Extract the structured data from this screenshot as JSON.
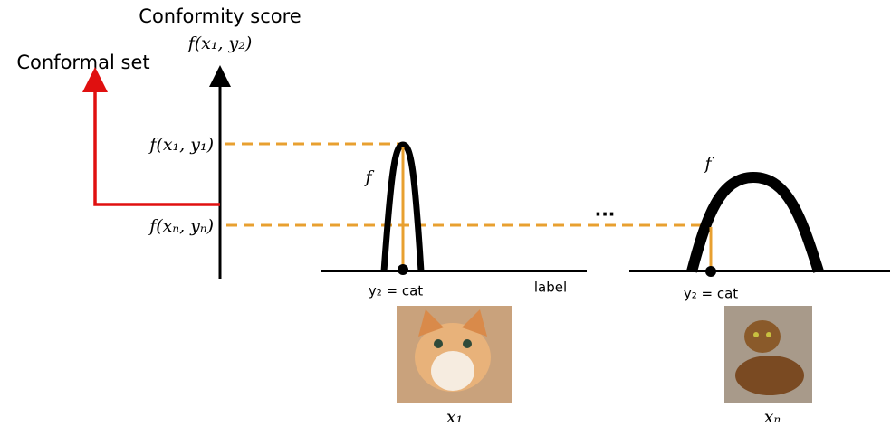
{
  "axis": {
    "title": "Conformity score",
    "top_label": "f(x₁, y₂)"
  },
  "conformal_set": "Conformal set",
  "levels": [
    "f(x₁, y₁)",
    "f(xₙ, yₙ)"
  ],
  "panels": [
    {
      "function": "f",
      "point_label": "y₂ = cat",
      "axis_label": "label",
      "input": "x₁"
    },
    {
      "function": "f",
      "point_label": "y₂ = cat",
      "input": "xₙ"
    }
  ],
  "ellipsis": "..."
}
